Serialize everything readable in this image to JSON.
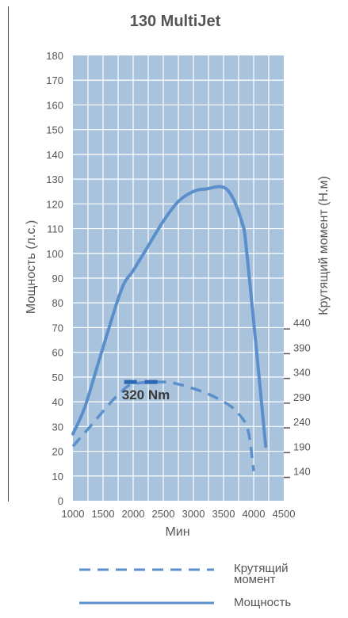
{
  "chart_data": {
    "type": "line",
    "title": "130 MultiJet",
    "xlabel": "Мин",
    "ylabel_left": "Мощность (л.с.)",
    "ylabel_right": "Крутящий момент (Н.м)",
    "x_ticks": [
      1000,
      1500,
      2000,
      2500,
      3000,
      3500,
      4000,
      4500
    ],
    "xlim": [
      1000,
      4500
    ],
    "y_left_ticks": [
      0,
      10,
      20,
      30,
      40,
      50,
      60,
      70,
      80,
      90,
      100,
      110,
      120,
      130,
      140,
      150,
      160,
      170,
      180
    ],
    "ylim_left": [
      0,
      180
    ],
    "y_right_ticks": [
      140,
      190,
      240,
      290,
      340,
      390,
      440
    ],
    "ylim_right": [
      140,
      440
    ],
    "grid": true,
    "annotation": "320 Nm",
    "colors": {
      "plot_bg": "#a9c3dc",
      "grid": "#ffffff",
      "line": "#5b8fcc",
      "peak": "#2c67b3"
    },
    "series": [
      {
        "name": "Мощность",
        "axis": "left",
        "style": "solid",
        "x": [
          1000,
          1200,
          1450,
          1800,
          2000,
          2200,
          2500,
          2750,
          3000,
          3200,
          3550,
          3800,
          3900,
          4200
        ],
        "values": [
          27,
          38,
          58,
          85,
          93,
          101,
          113,
          121,
          125,
          126,
          126,
          113,
          97,
          22
        ]
      },
      {
        "name": "Крутящий момент",
        "axis": "right",
        "style": "dashed",
        "x": [
          1000,
          1300,
          1600,
          1800,
          2000,
          2500,
          2800,
          3200,
          3500,
          3700,
          3900,
          4000
        ],
        "values": [
          190,
          232,
          275,
          300,
          316,
          320,
          314,
          298,
          280,
          262,
          225,
          140
        ]
      }
    ],
    "peak_segment": {
      "series": "Крутящий момент",
      "x": [
        1850,
        2500
      ],
      "value": 320
    },
    "legend": [
      {
        "label": "Крутящий момент",
        "style": "dashed"
      },
      {
        "label": "Мощность",
        "style": "solid"
      }
    ]
  }
}
